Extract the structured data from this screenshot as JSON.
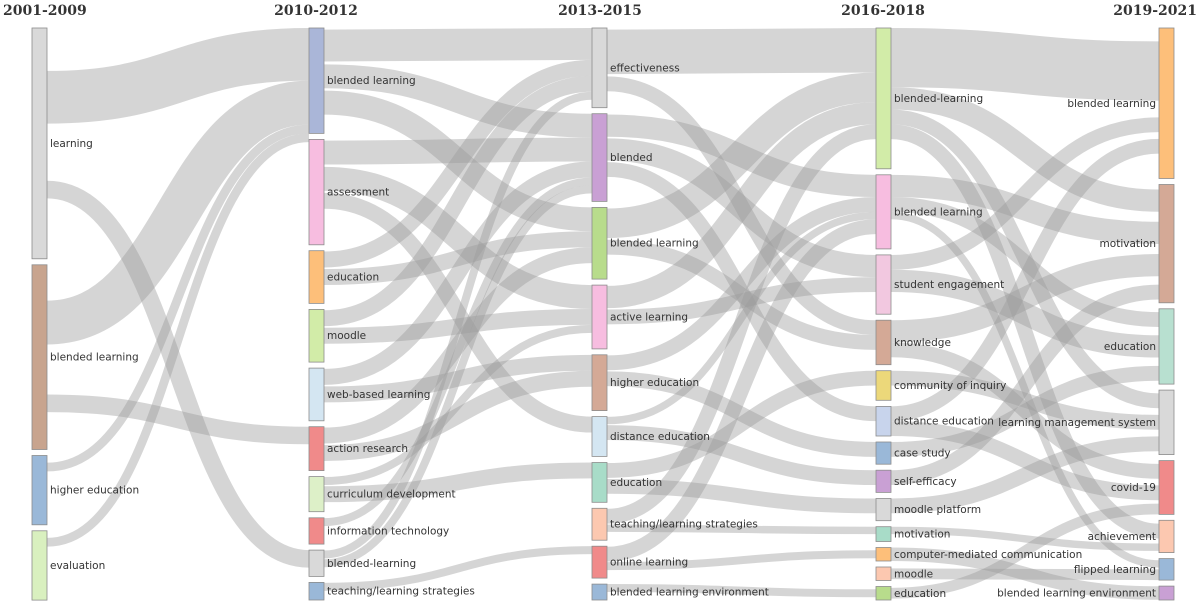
{
  "chart_data": {
    "type": "sankey",
    "title": "",
    "periods": [
      "2001-2009",
      "2010-2012",
      "2013-2015",
      "2016-2018",
      "2019-2021"
    ],
    "nodes": [
      {
        "id": "p0-learning",
        "period": 0,
        "label": "learning",
        "value": 10,
        "color": "#d9d9d9"
      },
      {
        "id": "p0-blended-learning",
        "period": 0,
        "label": "blended learning",
        "value": 8,
        "color": "#c8a48e"
      },
      {
        "id": "p0-higher-education",
        "period": 0,
        "label": "higher education",
        "value": 3,
        "color": "#9ab8d8"
      },
      {
        "id": "p0-evaluation",
        "period": 0,
        "label": "evaluation",
        "value": 3,
        "color": "#d9f0bf"
      },
      {
        "id": "p1-blended-learning",
        "period": 1,
        "label": "blended learning",
        "value": 12,
        "color": "#aab6d8"
      },
      {
        "id": "p1-assessment",
        "period": 1,
        "label": "assessment",
        "value": 12,
        "color": "#f7bde0"
      },
      {
        "id": "p1-education",
        "period": 1,
        "label": "education",
        "value": 6,
        "color": "#fdbf7a"
      },
      {
        "id": "p1-moodle",
        "period": 1,
        "label": "moodle",
        "value": 6,
        "color": "#d2eca8"
      },
      {
        "id": "p1-web-based-learning",
        "period": 1,
        "label": "web-based learning",
        "value": 6,
        "color": "#d4e6f2"
      },
      {
        "id": "p1-action-research",
        "period": 1,
        "label": "action research",
        "value": 5,
        "color": "#f08a8a"
      },
      {
        "id": "p1-curriculum-development",
        "period": 1,
        "label": "curriculum development",
        "value": 4,
        "color": "#ddf0c8"
      },
      {
        "id": "p1-information-technology",
        "period": 1,
        "label": "information technology",
        "value": 3,
        "color": "#f08a8a"
      },
      {
        "id": "p1-blended-learning-2",
        "period": 1,
        "label": "blended-learning",
        "value": 3,
        "color": "#d9d9d9"
      },
      {
        "id": "p1-teaching-learning-strategies",
        "period": 1,
        "label": "teaching/learning strategies",
        "value": 2,
        "color": "#9ab8d8"
      },
      {
        "id": "p2-effectiveness",
        "period": 2,
        "label": "effectiveness",
        "value": 10,
        "color": "#d9d9d9"
      },
      {
        "id": "p2-blended",
        "period": 2,
        "label": "blended",
        "value": 11,
        "color": "#c9a0d4"
      },
      {
        "id": "p2-blended-learning",
        "period": 2,
        "label": "blended learning",
        "value": 9,
        "color": "#b8dc8c"
      },
      {
        "id": "p2-active-learning",
        "period": 2,
        "label": "active learning",
        "value": 8,
        "color": "#f7bde0"
      },
      {
        "id": "p2-higher-education",
        "period": 2,
        "label": "higher education",
        "value": 7,
        "color": "#d4a996"
      },
      {
        "id": "p2-distance-education",
        "period": 2,
        "label": "distance education",
        "value": 5,
        "color": "#d4e6f2"
      },
      {
        "id": "p2-education",
        "period": 2,
        "label": "education",
        "value": 5,
        "color": "#a8dcc8"
      },
      {
        "id": "p2-teaching-learning-strategies",
        "period": 2,
        "label": "teaching/learning strategies",
        "value": 4,
        "color": "#fcc8b0"
      },
      {
        "id": "p2-online-learning",
        "period": 2,
        "label": "online learning",
        "value": 4,
        "color": "#f08a8a"
      },
      {
        "id": "p2-blended-learning-environment",
        "period": 2,
        "label": "blended learning environment",
        "value": 2,
        "color": "#9ab8d8"
      },
      {
        "id": "p3-blended-learning-2",
        "period": 3,
        "label": "blended-learning",
        "value": 19,
        "color": "#d2eca8"
      },
      {
        "id": "p3-blended-learning",
        "period": 3,
        "label": "blended learning",
        "value": 10,
        "color": "#f7bde0"
      },
      {
        "id": "p3-student-engagement",
        "period": 3,
        "label": "student engagement",
        "value": 8,
        "color": "#f2c8e0"
      },
      {
        "id": "p3-knowledge",
        "period": 3,
        "label": "knowledge",
        "value": 6,
        "color": "#d4a996"
      },
      {
        "id": "p3-community-of-inquiry",
        "period": 3,
        "label": "community of inquiry",
        "value": 4,
        "color": "#ecd87a"
      },
      {
        "id": "p3-distance-education",
        "period": 3,
        "label": "distance education",
        "value": 4,
        "color": "#c8d4ec"
      },
      {
        "id": "p3-case-study",
        "period": 3,
        "label": "case study",
        "value": 3,
        "color": "#9ab8d8"
      },
      {
        "id": "p3-self-efficacy",
        "period": 3,
        "label": "self-efficacy",
        "value": 3,
        "color": "#c9a0d4"
      },
      {
        "id": "p3-moodle-platform",
        "period": 3,
        "label": "moodle platform",
        "value": 3,
        "color": "#d9d9d9"
      },
      {
        "id": "p3-motivation",
        "period": 3,
        "label": "motivation",
        "value": 2,
        "color": "#a8dcc8"
      },
      {
        "id": "p3-computer-mediated-communication",
        "period": 3,
        "label": "computer-mediated communication",
        "value": 1,
        "color": "#fdbf7a"
      },
      {
        "id": "p3-moodle",
        "period": 3,
        "label": "moodle",
        "value": 1,
        "color": "#fcc8b0"
      },
      {
        "id": "p3-education",
        "period": 3,
        "label": "education",
        "value": 1,
        "color": "#b8dc8c"
      },
      {
        "id": "p4-blended-learning",
        "period": 4,
        "label": "blended learning",
        "value": 14,
        "color": "#fdbf7a"
      },
      {
        "id": "p4-motivation",
        "period": 4,
        "label": "motivation",
        "value": 11,
        "color": "#d4a996"
      },
      {
        "id": "p4-education",
        "period": 4,
        "label": "education",
        "value": 7,
        "color": "#b8e0d0"
      },
      {
        "id": "p4-learning-management-system",
        "period": 4,
        "label": "learning management system",
        "value": 6,
        "color": "#d9d9d9"
      },
      {
        "id": "p4-covid-19",
        "period": 4,
        "label": "covid-19",
        "value": 5,
        "color": "#f08a8a"
      },
      {
        "id": "p4-achievement",
        "period": 4,
        "label": "achievement",
        "value": 3,
        "color": "#fcc8b0"
      },
      {
        "id": "p4-flipped-learning",
        "period": 4,
        "label": "flipped learning",
        "value": 2,
        "color": "#9ab8d8"
      },
      {
        "id": "p4-blended-learning-environment",
        "period": 4,
        "label": "blended learning environment",
        "value": 1,
        "color": "#c9a0d4"
      }
    ],
    "links": [
      {
        "source": "p0-learning",
        "target": "p1-blended-learning",
        "value": 6
      },
      {
        "source": "p0-learning",
        "target": "p1-blended-learning-2",
        "value": 2
      },
      {
        "source": "p0-blended-learning",
        "target": "p1-blended-learning",
        "value": 5
      },
      {
        "source": "p0-blended-learning",
        "target": "p1-action-research",
        "value": 2
      },
      {
        "source": "p0-higher-education",
        "target": "p1-blended-learning",
        "value": 1
      },
      {
        "source": "p0-evaluation",
        "target": "p1-blended-learning",
        "value": 1
      },
      {
        "source": "p1-blended-learning",
        "target": "p2-effectiveness",
        "value": 4
      },
      {
        "source": "p1-blended-learning",
        "target": "p2-blended",
        "value": 3
      },
      {
        "source": "p1-blended-learning",
        "target": "p2-blended-learning",
        "value": 3
      },
      {
        "source": "p1-assessment",
        "target": "p2-blended",
        "value": 3
      },
      {
        "source": "p1-assessment",
        "target": "p2-active-learning",
        "value": 3
      },
      {
        "source": "p1-assessment",
        "target": "p2-distance-education",
        "value": 2
      },
      {
        "source": "p1-education",
        "target": "p2-blended-learning",
        "value": 2
      },
      {
        "source": "p1-education",
        "target": "p2-effectiveness",
        "value": 2
      },
      {
        "source": "p1-moodle",
        "target": "p2-effectiveness",
        "value": 2
      },
      {
        "source": "p1-moodle",
        "target": "p2-active-learning",
        "value": 2
      },
      {
        "source": "p1-web-based-learning",
        "target": "p2-higher-education",
        "value": 2
      },
      {
        "source": "p1-web-based-learning",
        "target": "p2-blended",
        "value": 2
      },
      {
        "source": "p1-action-research",
        "target": "p2-higher-education",
        "value": 2
      },
      {
        "source": "p1-action-research",
        "target": "p2-blended-learning",
        "value": 2
      },
      {
        "source": "p1-curriculum-development",
        "target": "p2-education",
        "value": 2
      },
      {
        "source": "p1-curriculum-development",
        "target": "p2-active-learning",
        "value": 1
      },
      {
        "source": "p1-information-technology",
        "target": "p2-blended",
        "value": 1
      },
      {
        "source": "p1-blended-learning-2",
        "target": "p2-effectiveness",
        "value": 1
      },
      {
        "source": "p1-blended-learning-2",
        "target": "p2-blended",
        "value": 1
      },
      {
        "source": "p1-teaching-learning-strategies",
        "target": "p2-online-learning",
        "value": 1
      },
      {
        "source": "p2-effectiveness",
        "target": "p3-blended-learning-2",
        "value": 6
      },
      {
        "source": "p2-effectiveness",
        "target": "p3-knowledge",
        "value": 2
      },
      {
        "source": "p2-blended",
        "target": "p3-blended-learning",
        "value": 3
      },
      {
        "source": "p2-blended",
        "target": "p3-student-engagement",
        "value": 3
      },
      {
        "source": "p2-blended",
        "target": "p3-distance-education",
        "value": 2
      },
      {
        "source": "p2-blended-learning",
        "target": "p3-blended-learning-2",
        "value": 4
      },
      {
        "source": "p2-blended-learning",
        "target": "p3-knowledge",
        "value": 2
      },
      {
        "source": "p2-active-learning",
        "target": "p3-blended-learning-2",
        "value": 3
      },
      {
        "source": "p2-active-learning",
        "target": "p3-student-engagement",
        "value": 2
      },
      {
        "source": "p2-higher-education",
        "target": "p3-blended-learning",
        "value": 2
      },
      {
        "source": "p2-higher-education",
        "target": "p3-case-study",
        "value": 2
      },
      {
        "source": "p2-distance-education",
        "target": "p3-self-efficacy",
        "value": 2
      },
      {
        "source": "p2-distance-education",
        "target": "p3-blended-learning",
        "value": 1
      },
      {
        "source": "p2-education",
        "target": "p3-community-of-inquiry",
        "value": 2
      },
      {
        "source": "p2-education",
        "target": "p3-moodle-platform",
        "value": 2
      },
      {
        "source": "p2-teaching-learning-strategies",
        "target": "p3-blended-learning-2",
        "value": 2
      },
      {
        "source": "p2-teaching-learning-strategies",
        "target": "p3-motivation",
        "value": 1
      },
      {
        "source": "p2-online-learning",
        "target": "p3-blended-learning",
        "value": 2
      },
      {
        "source": "p2-online-learning",
        "target": "p3-computer-mediated-communication",
        "value": 1
      },
      {
        "source": "p2-blended-learning-environment",
        "target": "p3-education",
        "value": 1
      },
      {
        "source": "p3-blended-learning-2",
        "target": "p4-blended-learning",
        "value": 8
      },
      {
        "source": "p3-blended-learning-2",
        "target": "p4-motivation",
        "value": 3
      },
      {
        "source": "p3-blended-learning-2",
        "target": "p4-learning-management-system",
        "value": 2
      },
      {
        "source": "p3-blended-learning-2",
        "target": "p4-achievement",
        "value": 2
      },
      {
        "source": "p3-blended-learning",
        "target": "p4-motivation",
        "value": 3
      },
      {
        "source": "p3-blended-learning",
        "target": "p4-education",
        "value": 2
      },
      {
        "source": "p3-blended-learning",
        "target": "p4-flipped-learning",
        "value": 1
      },
      {
        "source": "p3-student-engagement",
        "target": "p4-education",
        "value": 3
      },
      {
        "source": "p3-student-engagement",
        "target": "p4-blended-learning",
        "value": 2
      },
      {
        "source": "p3-knowledge",
        "target": "p4-motivation",
        "value": 3
      },
      {
        "source": "p3-knowledge",
        "target": "p4-covid-19",
        "value": 2
      },
      {
        "source": "p3-community-of-inquiry",
        "target": "p4-learning-management-system",
        "value": 2
      },
      {
        "source": "p3-distance-education",
        "target": "p4-covid-19",
        "value": 2
      },
      {
        "source": "p3-distance-education",
        "target": "p4-blended-learning",
        "value": 2
      },
      {
        "source": "p3-case-study",
        "target": "p4-education",
        "value": 2
      },
      {
        "source": "p3-self-efficacy",
        "target": "p4-motivation",
        "value": 2
      },
      {
        "source": "p3-moodle-platform",
        "target": "p4-learning-management-system",
        "value": 2
      },
      {
        "source": "p3-motivation",
        "target": "p4-achievement",
        "value": 1
      },
      {
        "source": "p3-computer-mediated-communication",
        "target": "p4-blended-learning-environment",
        "value": 1
      },
      {
        "source": "p3-moodle",
        "target": "p4-flipped-learning",
        "value": 1
      },
      {
        "source": "p3-education",
        "target": "p4-covid-19",
        "value": 1
      }
    ]
  }
}
